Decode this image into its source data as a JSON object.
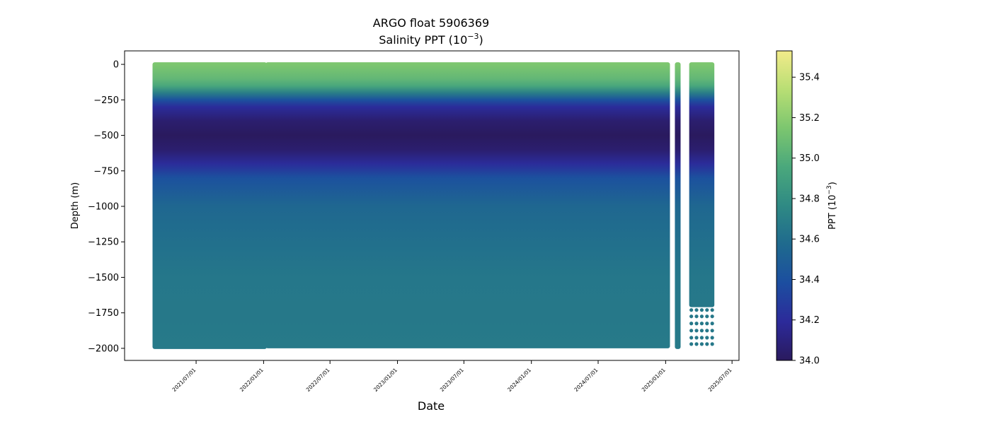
{
  "chart_data": {
    "type": "scatter",
    "title": "ARGO float 5906369",
    "subtitle_prefix": "Salinity PPT (10",
    "subtitle_exp": "−3",
    "subtitle_suffix": ")",
    "xlabel": "Date",
    "ylabel": "Depth (m)",
    "ylim": [
      -2085,
      95
    ],
    "yticks": [
      0,
      -250,
      -500,
      -750,
      -1000,
      -1250,
      -1500,
      -1750,
      -2000
    ],
    "ytick_labels": [
      "0",
      "−250",
      "−500",
      "−750",
      "−1000",
      "−1250",
      "−1500",
      "−1750",
      "−2000"
    ],
    "xlim": [
      "2020-12-18",
      "2025-07-20"
    ],
    "xticks": [
      "2021-07-01",
      "2022-01-01",
      "2022-07-01",
      "2023-01-01",
      "2023-07-01",
      "2024-01-01",
      "2024-07-01",
      "2025-01-01",
      "2025-07-01"
    ],
    "xtick_labels": [
      "2021/07/01",
      "2022/01/01",
      "2022/07/01",
      "2023/01/01",
      "2023/07/01",
      "2024/01/01",
      "2024/07/01",
      "2025/01/01",
      "2025/07/01"
    ],
    "colorbar": {
      "label_prefix": "PPT (10",
      "label_exp": "−3",
      "label_suffix": ")",
      "vmin": 34.0,
      "vmax": 35.53,
      "ticks": [
        34.0,
        34.2,
        34.4,
        34.6,
        34.8,
        35.0,
        35.2,
        35.4
      ],
      "tick_labels": [
        "34.0",
        "34.2",
        "34.4",
        "34.6",
        "34.8",
        "35.0",
        "35.2",
        "35.4"
      ],
      "colormap": [
        "#2a1a5e",
        "#2c2a9a",
        "#1c4ea0",
        "#1f6a8e",
        "#2f8a84",
        "#4aa87c",
        "#7cc66f",
        "#b8de74",
        "#f2eb8a"
      ]
    },
    "profile_segments": [
      {
        "start": "2021-03-10",
        "end": "2022-01-04",
        "min_depth": -1990
      },
      {
        "start": "2022-01-12",
        "end": "2025-01-07",
        "min_depth": -1985
      },
      {
        "start": "2025-02-01",
        "end": "2025-02-05",
        "min_depth": -1990
      },
      {
        "start": "2025-03-12",
        "end": "2025-05-08",
        "min_depth": -1695
      }
    ],
    "salinity_profile_typical": {
      "depths": [
        0,
        -50,
        -100,
        -150,
        -200,
        -250,
        -300,
        -400,
        -500,
        -600,
        -700,
        -800,
        -1000,
        -1200,
        -1500,
        -1750,
        -2000
      ],
      "values": [
        35.15,
        35.1,
        35.05,
        34.95,
        34.7,
        34.4,
        34.2,
        34.05,
        34.0,
        34.05,
        34.2,
        34.4,
        34.55,
        34.6,
        34.65,
        34.66,
        34.67
      ]
    },
    "deep_dots": {
      "start": "2025-03-12",
      "end": "2025-05-08",
      "depths": [
        -1730,
        -1775,
        -1825,
        -1875,
        -1925,
        -1970
      ],
      "value": 34.66
    }
  }
}
